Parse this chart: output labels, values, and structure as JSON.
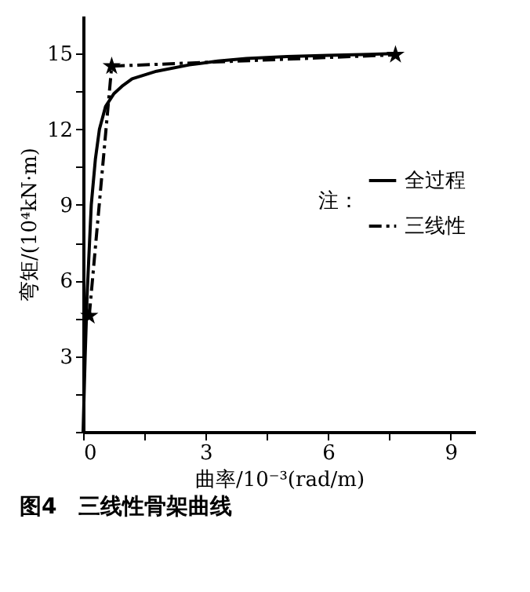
{
  "chart_data": {
    "type": "line",
    "title": "图4　三线性骨架曲线",
    "xlabel": "曲率/10⁻³(rad/m)",
    "ylabel": "弯矩/(10⁴kN·m)",
    "legend_title": "注：",
    "legend": "right",
    "grid": false,
    "xlim": [
      0,
      9.6
    ],
    "ylim": [
      0,
      16.5
    ],
    "xticks": [
      0,
      {
        "value": 1.5,
        "label": null
      },
      3,
      {
        "value": 4.5,
        "label": null
      },
      6,
      {
        "value": 7.5,
        "label": null
      },
      9
    ],
    "yticks": [
      {
        "value": 0,
        "label": null
      },
      {
        "value": 1.5,
        "label": null
      },
      3,
      {
        "value": 4.5,
        "label": null
      },
      6,
      {
        "value": 7.5,
        "label": null
      },
      9,
      {
        "value": 10.5,
        "label": null
      },
      12,
      {
        "value": 13.5,
        "label": null
      },
      15
    ],
    "series": [
      {
        "name": "全过程",
        "color": "#000000",
        "line_style": "solid",
        "marker": "none",
        "x": [
          0,
          0.05,
          0.1,
          0.2,
          0.3,
          0.4,
          0.55,
          0.75,
          0.95,
          1.2,
          1.4,
          1.8,
          2.6,
          3.3,
          4,
          5,
          6,
          7,
          7.6
        ],
        "values": [
          0,
          3,
          5.5,
          9,
          10.8,
          12,
          12.9,
          13.4,
          13.7,
          14,
          14.1,
          14.3,
          14.55,
          14.7,
          14.8,
          14.88,
          14.93,
          14.97,
          15
        ]
      },
      {
        "name": "三线性",
        "color": "#000000",
        "line_style": "dashdot",
        "marker": "star",
        "x": [
          0.15,
          0.7,
          7.65
        ],
        "values": [
          4.6,
          14.5,
          14.95
        ]
      }
    ]
  }
}
